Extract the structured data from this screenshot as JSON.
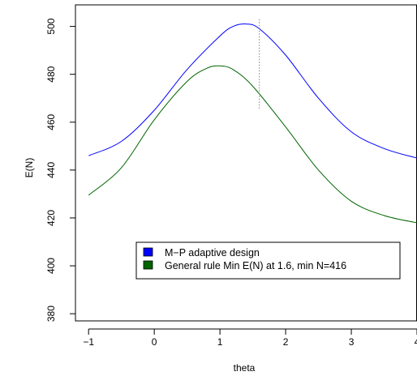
{
  "chart_data": {
    "type": "line",
    "xlabel": "theta",
    "ylabel": "E(N)",
    "xlim": [
      -1.2,
      4.0
    ],
    "ylim": [
      377,
      509
    ],
    "x_ticks": [
      -1,
      0,
      1,
      2,
      3,
      4
    ],
    "x_tick_labels": [
      "−1",
      "0",
      "1",
      "2",
      "3",
      "4"
    ],
    "y_ticks": [
      380,
      400,
      420,
      440,
      460,
      480,
      500
    ],
    "y_tick_labels": [
      "380",
      "400",
      "420",
      "440",
      "460",
      "480",
      "500"
    ],
    "grid": false,
    "legend_position": "bottom-center",
    "series": [
      {
        "name": "M−P adaptive design",
        "color": "#0000ff",
        "x": [
          -1.0,
          -0.5,
          0.0,
          0.5,
          1.0,
          1.2,
          1.4,
          1.6,
          2.0,
          2.5,
          3.0,
          3.5,
          4.0
        ],
        "y": [
          446,
          452,
          465,
          482,
          496,
          500,
          501,
          499,
          488,
          470,
          456,
          449,
          445
        ]
      },
      {
        "name": "General rule Min E(N) at 1.6, min N=416",
        "color": "#006400",
        "x": [
          -1.0,
          -0.5,
          0.0,
          0.5,
          0.8,
          1.0,
          1.2,
          1.5,
          2.0,
          2.5,
          3.0,
          3.5,
          4.0
        ],
        "y": [
          429.5,
          441,
          461,
          477,
          482.5,
          483.5,
          482,
          475,
          458,
          440,
          427,
          421,
          418
        ]
      }
    ],
    "reference_line": {
      "type": "vertical",
      "x": 1.6,
      "y_range": [
        465,
        503
      ],
      "style": "dotted",
      "color": "#808080"
    }
  }
}
